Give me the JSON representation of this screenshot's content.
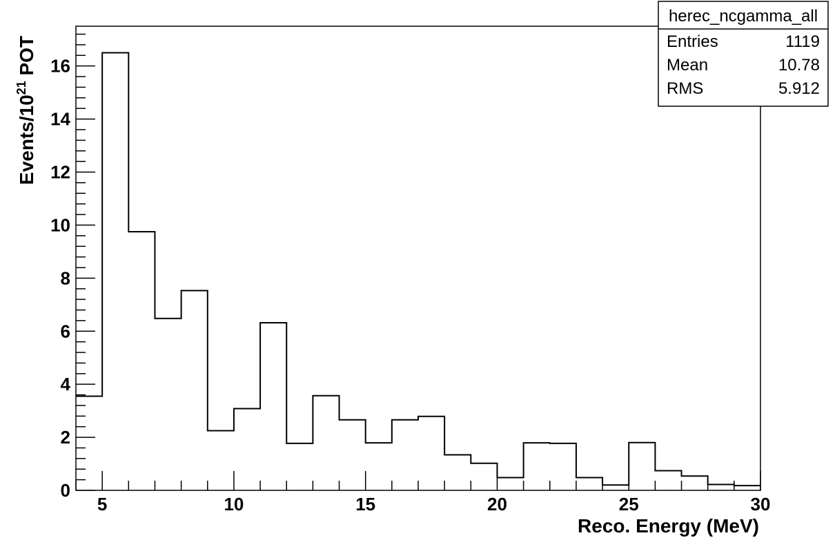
{
  "chart_data": {
    "type": "bar",
    "subtype": "histogram",
    "bin_edges": [
      4,
      5,
      6,
      7,
      8,
      9,
      10,
      11,
      12,
      13,
      14,
      15,
      16,
      17,
      18,
      19,
      20,
      21,
      22,
      23,
      24,
      25,
      26,
      27,
      28,
      29,
      30
    ],
    "values": [
      3.55,
      16.5,
      9.75,
      6.48,
      7.53,
      2.25,
      3.08,
      6.32,
      1.77,
      3.57,
      2.66,
      1.79,
      2.66,
      2.79,
      1.34,
      1.02,
      0.48,
      1.79,
      1.77,
      0.48,
      0.2,
      1.8,
      0.74,
      0.54,
      0.22,
      0.18
    ],
    "xlim": [
      4,
      30
    ],
    "ylim": [
      0,
      17.5
    ],
    "x_ticks": [
      5,
      10,
      15,
      20,
      25,
      30
    ],
    "y_ticks": [
      0,
      2,
      4,
      6,
      8,
      10,
      12,
      14,
      16
    ],
    "xlabel": "Reco. Energy (MeV)",
    "ylabel_prefix": "Events/10",
    "ylabel_superscript": "21",
    "ylabel_suffix": " POT",
    "grid": false,
    "stats_box": {
      "title": "herec_ncgamma_all",
      "rows": [
        {
          "label": "Entries",
          "value": "1119"
        },
        {
          "label": "Mean",
          "value": "10.78"
        },
        {
          "label": "RMS",
          "value": "5.912"
        }
      ],
      "placement": "top-right"
    }
  }
}
